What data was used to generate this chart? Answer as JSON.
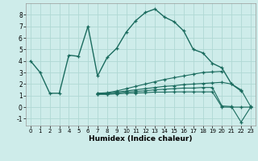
{
  "bg_color": "#ceecea",
  "grid_color": "#b0d8d4",
  "line_color": "#1a6b5e",
  "xlabel": "Humidex (Indice chaleur)",
  "xlim": [
    -0.5,
    23.5
  ],
  "ylim": [
    -1.6,
    9.0
  ],
  "xticks": [
    0,
    1,
    2,
    3,
    4,
    5,
    6,
    7,
    8,
    9,
    10,
    11,
    12,
    13,
    14,
    15,
    16,
    17,
    18,
    19,
    20,
    21,
    22,
    23
  ],
  "yticks": [
    -1,
    0,
    1,
    2,
    3,
    4,
    5,
    6,
    7,
    8
  ],
  "series": [
    [
      4.0,
      3.0,
      1.2,
      1.2,
      4.5,
      4.4,
      7.0,
      2.7,
      4.3,
      5.1,
      6.5,
      7.5,
      8.2,
      8.5,
      7.8,
      7.4,
      6.6,
      5.0,
      4.7,
      3.8,
      3.4,
      2.0,
      1.4,
      null
    ],
    [
      null,
      null,
      null,
      null,
      null,
      null,
      null,
      1.2,
      1.25,
      1.4,
      1.6,
      1.8,
      2.0,
      2.2,
      2.4,
      2.55,
      2.7,
      2.85,
      3.0,
      3.05,
      3.1,
      null,
      null,
      null
    ],
    [
      null,
      null,
      null,
      null,
      null,
      null,
      null,
      1.2,
      1.2,
      1.3,
      1.4,
      1.5,
      1.6,
      1.7,
      1.8,
      1.85,
      1.95,
      2.0,
      2.05,
      2.1,
      2.15,
      2.0,
      1.5,
      0.05
    ],
    [
      null,
      null,
      null,
      null,
      null,
      null,
      null,
      1.15,
      1.15,
      1.22,
      1.3,
      1.35,
      1.42,
      1.5,
      1.55,
      1.6,
      1.65,
      1.65,
      1.7,
      1.7,
      0.1,
      0.05,
      -1.3,
      0.0
    ],
    [
      null,
      null,
      null,
      null,
      null,
      null,
      null,
      1.1,
      1.1,
      1.15,
      1.2,
      1.22,
      1.25,
      1.3,
      1.3,
      1.32,
      1.32,
      1.32,
      1.32,
      1.32,
      0.0,
      0.0,
      0.0,
      0.0
    ]
  ]
}
